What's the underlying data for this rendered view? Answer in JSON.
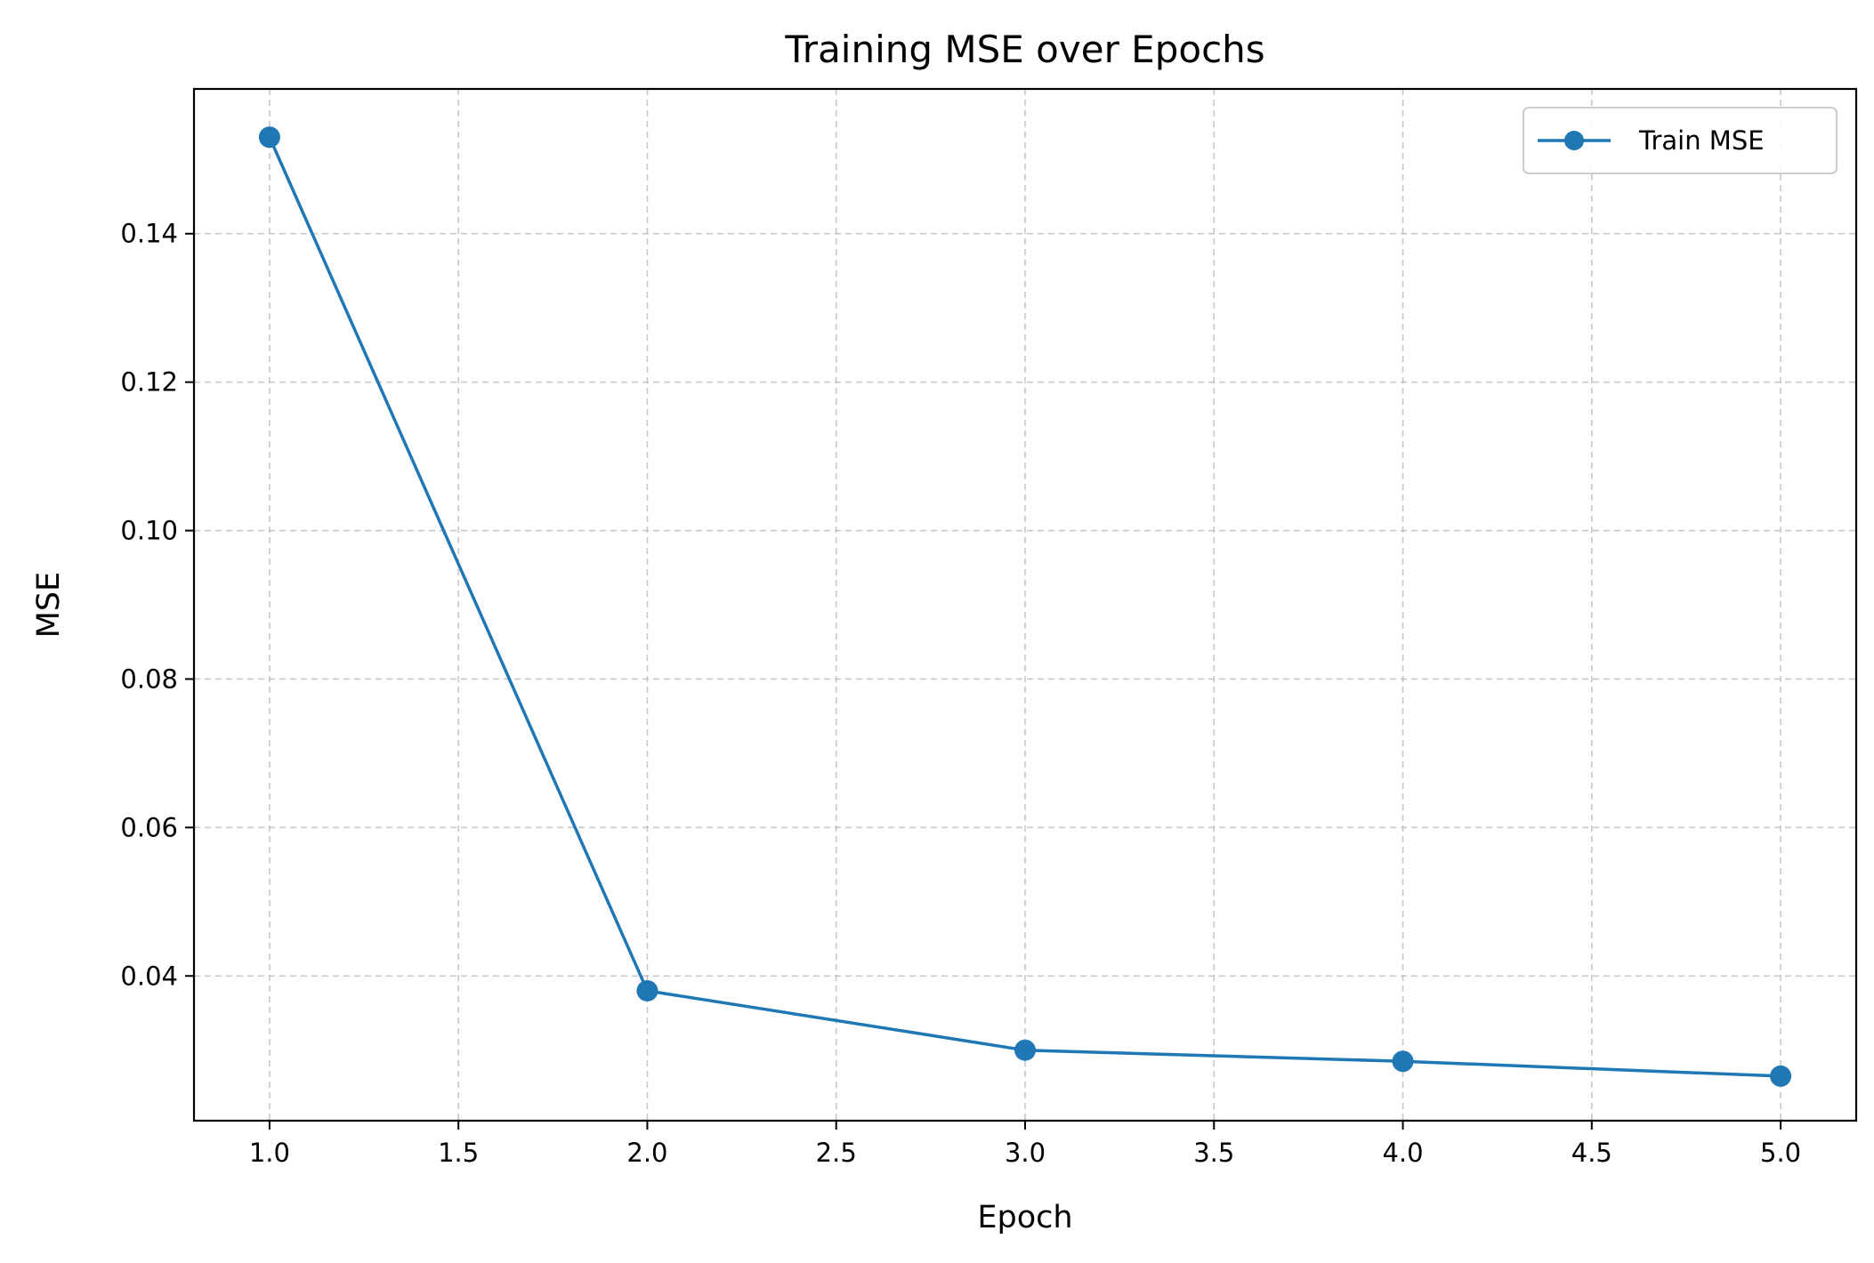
{
  "chart_data": {
    "type": "line",
    "title": "Training MSE over Epochs",
    "xlabel": "Epoch",
    "ylabel": "MSE",
    "xlim": [
      0.8,
      5.2
    ],
    "ylim": [
      0.0205,
      0.1595
    ],
    "x_ticks": [
      1.0,
      1.5,
      2.0,
      2.5,
      3.0,
      3.5,
      4.0,
      4.5,
      5.0
    ],
    "x_tick_labels": [
      "1.0",
      "1.5",
      "2.0",
      "2.5",
      "3.0",
      "3.5",
      "4.0",
      "4.5",
      "5.0"
    ],
    "y_ticks": [
      0.04,
      0.06,
      0.08,
      0.1,
      0.12,
      0.14
    ],
    "y_tick_labels": [
      "0.04",
      "0.06",
      "0.08",
      "0.10",
      "0.12",
      "0.14"
    ],
    "grid": true,
    "legend_position": "top-right",
    "series": [
      {
        "name": "Train MSE",
        "color": "#1f77b4",
        "marker": "circle",
        "x": [
          1,
          2,
          3,
          4,
          5
        ],
        "values": [
          0.153,
          0.038,
          0.03,
          0.0285,
          0.0265
        ]
      }
    ]
  }
}
